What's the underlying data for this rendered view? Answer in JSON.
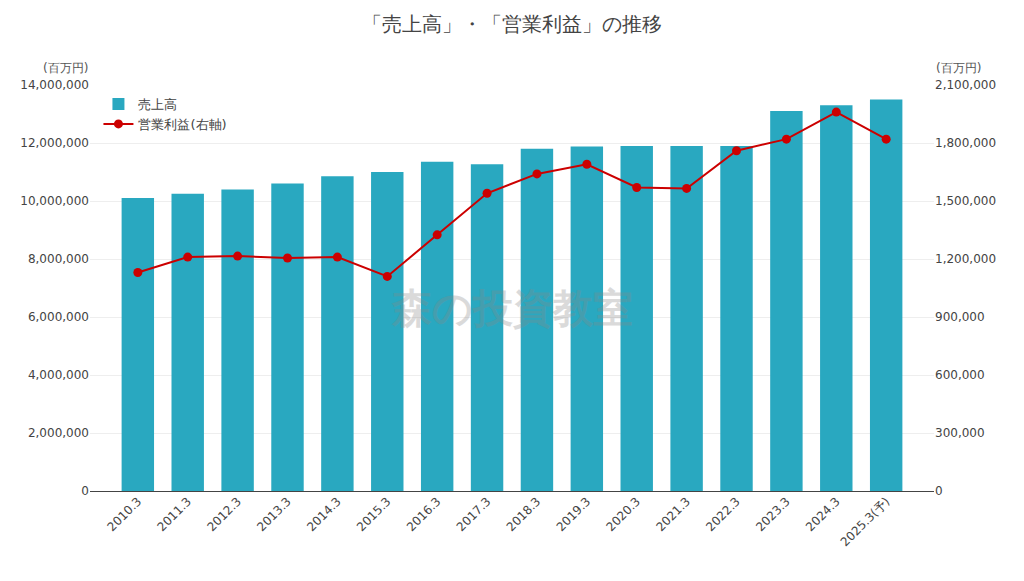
{
  "chart_data": {
    "type": "bar",
    "title": "「売上高」・「営業利益」の推移",
    "ylabel": "(百万円)",
    "y2label": "(百万円)",
    "annotations": [
      "森の投資教室"
    ],
    "categories": [
      "2010.3",
      "2011.3",
      "2012.3",
      "2013.3",
      "2014.3",
      "2015.3",
      "2016.3",
      "2017.3",
      "2018.3",
      "2019.3",
      "2020.3",
      "2021.3",
      "2022.3",
      "2023.3",
      "2024.3",
      "2025.3(予)"
    ],
    "series": [
      {
        "name": "売上高",
        "type": "bar",
        "color": "#29a8c0",
        "values": [
          10100000,
          10250000,
          10400000,
          10600000,
          10850000,
          11000000,
          11350000,
          11270000,
          11800000,
          11880000,
          11900000,
          11900000,
          11900000,
          13100000,
          13300000,
          13500000
        ]
      },
      {
        "name": "営業利益(右軸)",
        "type": "line",
        "axis": "y2",
        "color": "#cc0000",
        "marker": "circle",
        "values": [
          1130000,
          1210000,
          1215000,
          1205000,
          1210000,
          1110000,
          1325000,
          1540000,
          1640000,
          1690000,
          1570000,
          1565000,
          1760000,
          1820000,
          1960000,
          1820000
        ]
      }
    ],
    "ylim": [
      0,
      14000000
    ],
    "yticks": [
      0,
      {
        "value": 2000000,
        "label": "2,000,000"
      },
      {
        "value": 4000000,
        "label": "4,000,000"
      },
      {
        "value": 6000000,
        "label": "6,000,000"
      },
      {
        "value": 8000000,
        "label": "8,000,000"
      },
      {
        "value": 10000000,
        "label": "10,000,000"
      },
      {
        "value": 12000000,
        "label": "12,000,000"
      },
      {
        "value": 14000000,
        "label": "14,000,000"
      }
    ],
    "y2lim": [
      0,
      2100000
    ],
    "y2ticks": [
      0,
      {
        "value": 300000,
        "label": "300,000"
      },
      {
        "value": 600000,
        "label": "600,000"
      },
      {
        "value": 900000,
        "label": "900,000"
      },
      {
        "value": 1200000,
        "label": "1,200,000"
      },
      {
        "value": 1500000,
        "label": "1,500,000"
      },
      {
        "value": 1800000,
        "label": "1,800,000"
      },
      {
        "value": 2100000,
        "label": "2,100,000"
      }
    ],
    "grid": true,
    "legend": "upper left"
  }
}
